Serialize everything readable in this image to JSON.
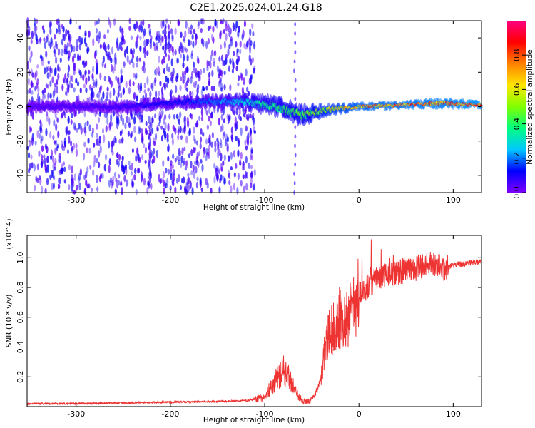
{
  "figure_title": "C2E1.2025.024.01.24.G18",
  "chart_data": [
    {
      "type": "heatmap",
      "title": "C2E1.2025.024.01.24.G18",
      "xlabel": "Height of straight line (km)",
      "ylabel": "Frequency (Hz)",
      "xlim": [
        -352,
        130
      ],
      "ylim": [
        -50,
        50
      ],
      "xticks": [
        -300,
        -200,
        -100,
        0,
        100
      ],
      "yticks": [
        -40,
        -20,
        0,
        20,
        40
      ],
      "colorbar": {
        "label": "Normalized spectral amplitude",
        "range": [
          0,
          1
        ],
        "ticks": [
          0.0,
          0.2,
          0.4,
          0.6,
          0.8
        ],
        "tick_labels": [
          "0.0",
          "0.2",
          "0.4",
          "0.6",
          "0.8"
        ],
        "colormap": [
          "#7f00ff",
          "#0000ff",
          "#00c8ff",
          "#00ff80",
          "#80ff00",
          "#ffe600",
          "#ff8000",
          "#ff0000",
          "#ff0080"
        ]
      },
      "signal_band": [
        {
          "x": -352,
          "f": 0,
          "width": 6,
          "amplitude": 0.05
        },
        {
          "x": -250,
          "f": 0,
          "width": 6,
          "amplitude": 0.08
        },
        {
          "x": -180,
          "f": 3,
          "width": 6,
          "amplitude": 0.15
        },
        {
          "x": -120,
          "f": 3,
          "width": 8,
          "amplitude": 0.3
        },
        {
          "x": -90,
          "f": 0,
          "width": 10,
          "amplitude": 0.4
        },
        {
          "x": -60,
          "f": -5,
          "width": 10,
          "amplitude": 0.45
        },
        {
          "x": -35,
          "f": -2,
          "width": 6,
          "amplitude": 0.6
        },
        {
          "x": 0,
          "f": 0,
          "width": 4,
          "amplitude": 0.75
        },
        {
          "x": 50,
          "f": 1,
          "width": 4,
          "amplitude": 0.8
        },
        {
          "x": 85,
          "f": 2,
          "width": 5,
          "amplitude": 0.8
        },
        {
          "x": 130,
          "f": 1,
          "width": 4,
          "amplitude": 0.85
        }
      ],
      "noise_region_xlim": [
        -352,
        -110
      ],
      "noise_amplitude": 0.05
    },
    {
      "type": "line",
      "xlabel": "Height of straight line (km)",
      "ylabel": "SNR (10 * v/v)",
      "y_multiplier": "(x10^4)",
      "xlim": [
        -352,
        130
      ],
      "ylim": [
        0,
        1.15
      ],
      "xticks": [
        -300,
        -200,
        -100,
        0,
        100
      ],
      "yticks": [
        0.2,
        0.4,
        0.6,
        0.8,
        1.0
      ],
      "ytick_labels": [
        "0.2",
        "0.4",
        "0.6",
        "0.8",
        "1.0"
      ],
      "color": "#ee3333",
      "series": [
        {
          "x": [
            -352,
            -300,
            -250,
            -200,
            -150,
            -120,
            -100,
            -95,
            -90,
            -85,
            -80,
            -75,
            -70,
            -65,
            -60,
            -55,
            -50,
            -45,
            -40,
            -35,
            -30,
            -25,
            -20,
            -15,
            -10,
            -5,
            0,
            10,
            20,
            30,
            40,
            50,
            60,
            70,
            80,
            90,
            100,
            110,
            120,
            130
          ],
          "y": [
            0.02,
            0.02,
            0.025,
            0.03,
            0.035,
            0.04,
            0.06,
            0.12,
            0.16,
            0.2,
            0.24,
            0.2,
            0.14,
            0.08,
            0.04,
            0.03,
            0.05,
            0.1,
            0.2,
            0.45,
            0.5,
            0.55,
            0.58,
            0.6,
            0.62,
            0.68,
            0.75,
            0.82,
            0.85,
            0.88,
            0.9,
            0.92,
            0.93,
            0.95,
            0.96,
            0.92,
            0.95,
            0.96,
            0.97,
            0.97
          ]
        }
      ]
    }
  ]
}
